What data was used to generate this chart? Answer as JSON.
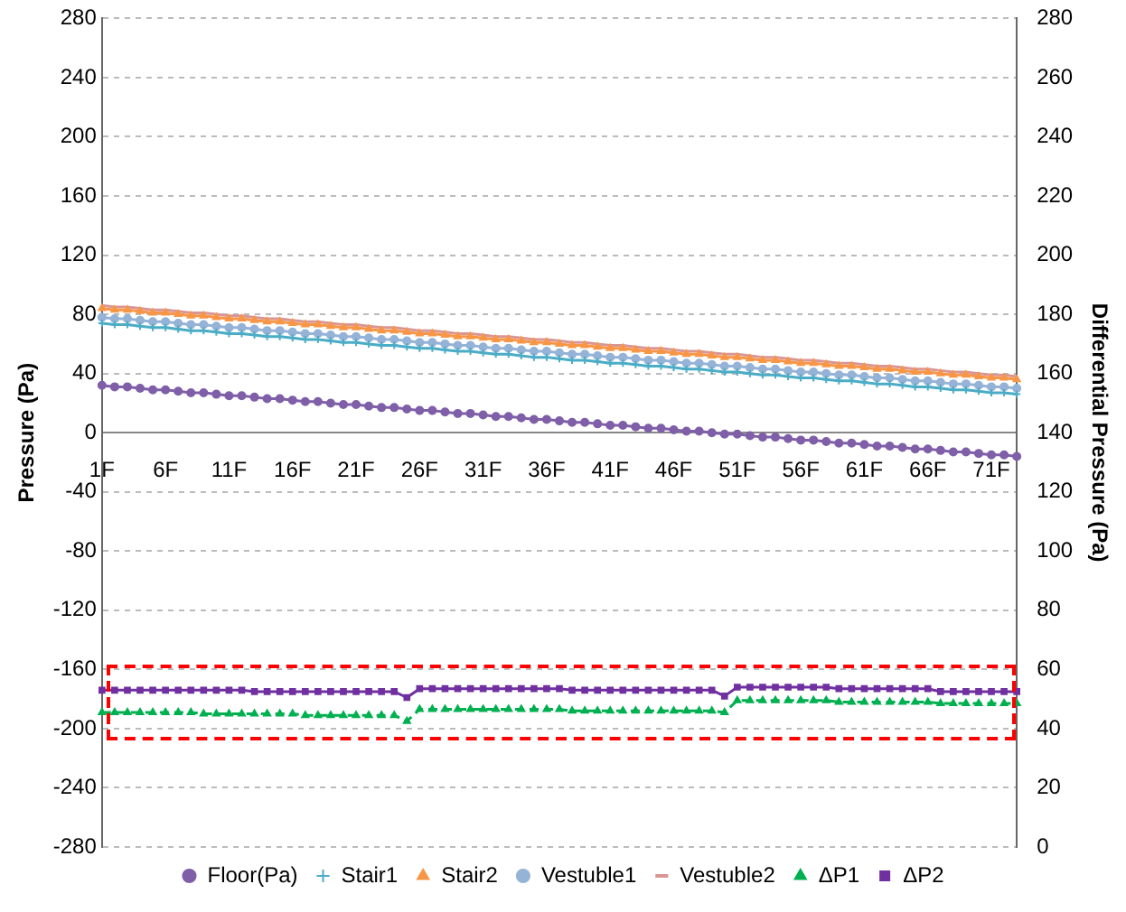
{
  "chart_data": {
    "type": "line",
    "ylabel": "Pressure (Pa)",
    "y2label": "Differential Pressure (Pa)",
    "categories": [
      "1F",
      null,
      null,
      null,
      null,
      "6F",
      null,
      null,
      null,
      null,
      "11F",
      null,
      null,
      null,
      null,
      "16F",
      null,
      null,
      null,
      null,
      "21F",
      null,
      null,
      null,
      null,
      "26F",
      null,
      null,
      null,
      null,
      "31F",
      null,
      null,
      null,
      null,
      "36F",
      null,
      null,
      null,
      null,
      "41F",
      null,
      null,
      null,
      null,
      "46F",
      null,
      null,
      null,
      null,
      "51F",
      null,
      null,
      null,
      null,
      "56F",
      null,
      null,
      null,
      null,
      "61F",
      null,
      null,
      null,
      null,
      "66F",
      null,
      null,
      null,
      null,
      "71F",
      null,
      null
    ],
    "ylim": [
      -280,
      280
    ],
    "yticks": [
      -280,
      -240,
      -200,
      -160,
      -120,
      -80,
      -40,
      0,
      40,
      80,
      120,
      160,
      200,
      240,
      280
    ],
    "y2lim": [
      0,
      280
    ],
    "y2ticks": [
      0,
      20,
      40,
      60,
      80,
      100,
      120,
      140,
      160,
      180,
      200,
      220,
      240,
      260,
      280
    ],
    "grid": "y",
    "legend": "bottom",
    "series": [
      {
        "name": "Floor(Pa)",
        "color": "#7f5fa8",
        "marker": "circle",
        "values": [
          32,
          31,
          31,
          30,
          29,
          29,
          28,
          27,
          27,
          26,
          25,
          25,
          24,
          23,
          23,
          22,
          21,
          21,
          20,
          19,
          19,
          18,
          17,
          17,
          16,
          15,
          15,
          14,
          13,
          13,
          12,
          11,
          11,
          10,
          9,
          9,
          8,
          7,
          7,
          6,
          5,
          5,
          4,
          3,
          3,
          2,
          1,
          1,
          0,
          -1,
          -1,
          -2,
          -3,
          -3,
          -4,
          -5,
          -5,
          -6,
          -7,
          -7,
          -8,
          -9,
          -9,
          -10,
          -11,
          -11,
          -12,
          -13,
          -13,
          -14,
          -15,
          -15,
          -16
        ]
      },
      {
        "name": "Stair1",
        "color": "#4bacc6",
        "marker": "cross",
        "values": [
          74,
          73,
          73,
          72,
          71,
          71,
          70,
          69,
          69,
          68,
          67,
          67,
          66,
          65,
          65,
          64,
          63,
          63,
          62,
          61,
          61,
          60,
          59,
          59,
          58,
          57,
          57,
          56,
          55,
          55,
          54,
          53,
          53,
          52,
          51,
          51,
          50,
          49,
          49,
          48,
          47,
          47,
          46,
          45,
          45,
          44,
          43,
          43,
          42,
          41,
          41,
          40,
          39,
          39,
          38,
          37,
          37,
          36,
          35,
          35,
          34,
          33,
          33,
          32,
          31,
          31,
          30,
          29,
          29,
          28,
          27,
          27,
          26
        ]
      },
      {
        "name": "Stair2",
        "color": "#f79646",
        "marker": "triangle",
        "values": [
          84,
          83,
          83,
          82,
          81,
          81,
          80,
          79,
          79,
          78,
          77,
          77,
          76,
          75,
          75,
          74,
          73,
          73,
          72,
          71,
          71,
          70,
          69,
          69,
          68,
          67,
          67,
          66,
          65,
          65,
          64,
          63,
          63,
          62,
          61,
          61,
          60,
          59,
          59,
          58,
          57,
          57,
          56,
          55,
          55,
          54,
          53,
          53,
          52,
          51,
          51,
          50,
          49,
          49,
          48,
          47,
          47,
          46,
          45,
          45,
          44,
          43,
          43,
          42,
          41,
          41,
          40,
          39,
          39,
          38,
          37,
          37,
          36
        ]
      },
      {
        "name": "Vestuble1",
        "color": "#95b3d7",
        "marker": "circle",
        "values": [
          78,
          77,
          77,
          76,
          75,
          75,
          74,
          73,
          73,
          72,
          71,
          71,
          70,
          69,
          69,
          68,
          67,
          67,
          66,
          65,
          65,
          64,
          63,
          63,
          62,
          61,
          61,
          60,
          59,
          59,
          58,
          57,
          57,
          56,
          55,
          55,
          54,
          53,
          53,
          52,
          51,
          51,
          50,
          49,
          49,
          48,
          47,
          47,
          46,
          45,
          45,
          44,
          43,
          43,
          42,
          41,
          41,
          40,
          39,
          39,
          38,
          37,
          37,
          36,
          35,
          35,
          34,
          33,
          33,
          32,
          31,
          31,
          30
        ]
      },
      {
        "name": "Vestuble2",
        "color": "#d99694",
        "marker": "none",
        "values": [
          86,
          85,
          85,
          84,
          83,
          83,
          82,
          81,
          81,
          80,
          79,
          79,
          78,
          77,
          77,
          76,
          75,
          75,
          74,
          73,
          73,
          72,
          71,
          71,
          70,
          69,
          69,
          68,
          67,
          67,
          66,
          65,
          65,
          64,
          63,
          63,
          62,
          61,
          61,
          60,
          59,
          59,
          58,
          57,
          57,
          56,
          55,
          55,
          54,
          53,
          53,
          52,
          51,
          51,
          50,
          49,
          49,
          48,
          47,
          47,
          46,
          45,
          45,
          44,
          43,
          43,
          42,
          41,
          41,
          40,
          39,
          39,
          38
        ]
      },
      {
        "name": "ΔP1",
        "color": "#00b050",
        "marker": "triangle",
        "line_style": "dashed",
        "axis": "y2",
        "values": [
          45.5,
          45.5,
          45.5,
          45.5,
          45.5,
          45.5,
          45.5,
          45.5,
          45,
          45,
          45,
          45,
          45,
          45,
          45,
          45,
          44.5,
          44.5,
          44.5,
          44.5,
          44.5,
          44.5,
          44.5,
          44.5,
          42.5,
          46.5,
          46.5,
          46.5,
          46.5,
          46.5,
          46.5,
          46.5,
          46.5,
          46.5,
          46.5,
          46.5,
          46.5,
          46,
          46,
          46,
          46,
          46,
          46,
          46,
          46,
          46,
          46,
          46,
          46,
          45.5,
          49.5,
          49.5,
          49.5,
          49.5,
          49.5,
          49.5,
          49.5,
          49.5,
          49,
          49,
          49,
          49,
          49,
          49,
          49,
          49,
          48.5,
          48.5,
          48.5,
          48.5,
          48.5,
          48.5,
          48.5
        ]
      },
      {
        "name": "ΔP2",
        "color": "#7030a0",
        "marker": "square",
        "axis": "y2",
        "values": [
          53,
          53,
          53,
          53,
          53,
          53,
          53,
          53,
          53,
          53,
          53,
          53,
          52.5,
          52.5,
          52.5,
          52.5,
          52.5,
          52.5,
          52.5,
          52.5,
          52.5,
          52.5,
          52.5,
          52.5,
          50.5,
          53.5,
          53.5,
          53.5,
          53.5,
          53.5,
          53.5,
          53.5,
          53.5,
          53.5,
          53.5,
          53.5,
          53.5,
          53,
          53,
          53,
          53,
          53,
          53,
          53,
          53,
          53,
          53,
          53,
          53,
          51,
          54,
          54,
          54,
          54,
          54,
          54,
          54,
          54,
          53.5,
          53.5,
          53.5,
          53.5,
          53.5,
          53.5,
          53.5,
          53.5,
          52.5,
          52.5,
          52.5,
          52.5,
          52.5,
          52.5,
          52.5
        ]
      }
    ]
  }
}
